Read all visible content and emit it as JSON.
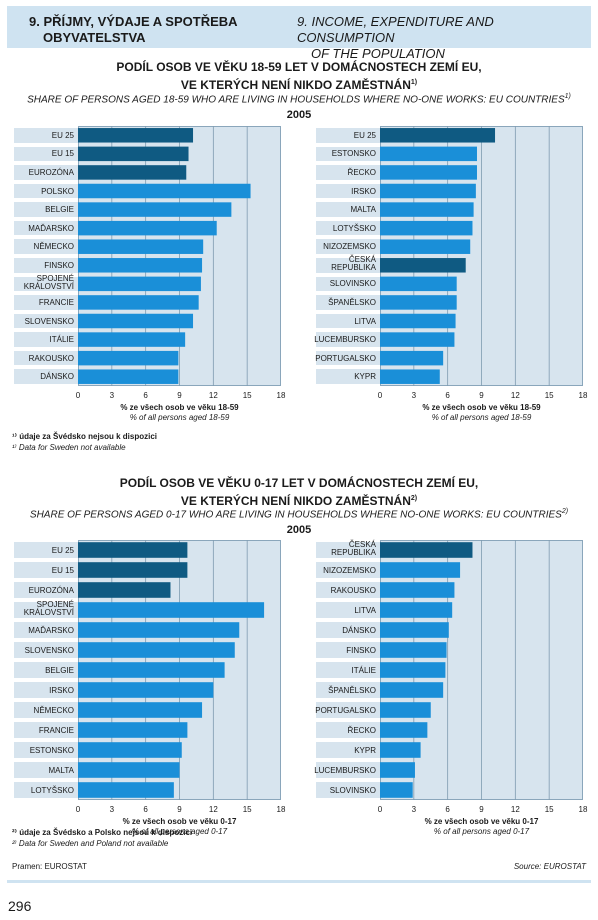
{
  "header": {
    "cz": "9. PŘÍJMY, VÝDAJE A SPOTŘEBA OBYVATELSTVA",
    "cz_line1": "9. PŘÍJMY, VÝDAJE A SPOTŘEBA",
    "cz_line2": "OBYVATELSTVA",
    "en_line1": "9. INCOME, EXPENDITURE AND CONSUMPTION",
    "en_line2": "OF THE POPULATION"
  },
  "sections": [
    {
      "title_cz_line1": "PODÍL OSOB VE VĚKU 18-59 LET V DOMÁCNOSTECH ZEMÍ EU,",
      "title_cz_line2": "VE KTERÝCH NENÍ NIKDO ZAMĚSTNÁN",
      "title_sup": "1)",
      "subtitle_en": "SHARE OF PERSONS AGED 18-59 WHO ARE LIVING IN HOUSEHOLDS WHERE NO-ONE WORKS: EU COUNTRIES",
      "subtitle_sup": "1)",
      "year": "2005",
      "xlabel_cz": "% ze všech osob ve věku 18-59",
      "xlabel_en": "% of all persons aged 18-59",
      "note_cz": "¹⁾ údaje za Švédsko nejsou k dispozici",
      "note_en": "¹⁾ Data for Sweden not available"
    },
    {
      "title_cz_line1": "PODÍL OSOB VE VĚKU 0-17 LET V DOMÁCNOSTECH ZEMÍ EU,",
      "title_cz_line2": "VE KTERÝCH NENÍ NIKDO ZAMĚSTNÁN",
      "title_sup": "2)",
      "subtitle_en": "SHARE OF PERSONS AGED 0-17 WHO ARE LIVING IN HOUSEHOLDS WHERE NO-ONE WORKS: EU COUNTRIES",
      "subtitle_sup": "2)",
      "year": "2005",
      "xlabel_cz": "% ze všech osob ve věku 0-17",
      "xlabel_en": "% of all persons aged 0-17",
      "note_cz": "²⁾ údaje za Švédsko a Polsko nejsou k dispozici",
      "note_en": "²⁾ Data for Sweden and Poland not available"
    }
  ],
  "colors": {
    "aggregate": "#0f5a82",
    "country": "#1a8fd8",
    "plot_bg": "#d7e4ee",
    "header_bg": "#cfe3f1"
  },
  "chart_data": [
    {
      "type": "bar",
      "orientation": "horizontal",
      "xlim": [
        0,
        18
      ],
      "ticks": [
        "0",
        "3",
        "6",
        "9",
        "12",
        "15",
        "18"
      ],
      "categories": [
        "EU 25",
        "EU 15",
        "EUROZÓNA",
        "POLSKO",
        "BELGIE",
        "MAĎARSKO",
        "NĚMECKO",
        "FINSKO",
        "SPOJENÉ KRÁLOVSTVÍ",
        "FRANCIE",
        "SLOVENSKO",
        "ITÁLIE",
        "RAKOUSKO",
        "DÁNSKO"
      ],
      "values": [
        10.2,
        9.8,
        9.6,
        15.3,
        13.6,
        12.3,
        11.1,
        11.0,
        10.9,
        10.7,
        10.2,
        9.5,
        8.9,
        8.9
      ],
      "aggregate": [
        true,
        true,
        true,
        false,
        false,
        false,
        false,
        false,
        false,
        false,
        false,
        false,
        false,
        false
      ]
    },
    {
      "type": "bar",
      "orientation": "horizontal",
      "xlim": [
        0,
        18
      ],
      "ticks": [
        "0",
        "3",
        "6",
        "9",
        "12",
        "15",
        "18"
      ],
      "categories": [
        "EU 25",
        "ESTONSKO",
        "ŘECKO",
        "IRSKO",
        "MALTA",
        "LOTYŠSKO",
        "NIZOZEMSKO",
        "ČESKÁ REPUBLIKA",
        "SLOVINSKO",
        "ŠPANĚLSKO",
        "LITVA",
        "LUCEMBURSKO",
        "PORTUGALSKO",
        "KYPR"
      ],
      "values": [
        10.2,
        8.6,
        8.6,
        8.5,
        8.3,
        8.2,
        8.0,
        7.6,
        6.8,
        6.8,
        6.7,
        6.6,
        5.6,
        5.3
      ],
      "aggregate": [
        true,
        false,
        false,
        false,
        false,
        false,
        false,
        true,
        false,
        false,
        false,
        false,
        false,
        false
      ]
    },
    {
      "type": "bar",
      "orientation": "horizontal",
      "xlim": [
        0,
        18
      ],
      "ticks": [
        "0",
        "3",
        "6",
        "9",
        "12",
        "15",
        "18"
      ],
      "categories": [
        "EU 25",
        "EU 15",
        "EUROZÓNA",
        "SPOJENÉ KRÁLOVSTVÍ",
        "MAĎARSKO",
        "SLOVENSKO",
        "BELGIE",
        "IRSKO",
        "NĚMECKO",
        "FRANCIE",
        "ESTONSKO",
        "MALTA",
        "LOTYŠSKO"
      ],
      "values": [
        9.7,
        9.7,
        8.2,
        16.5,
        14.3,
        13.9,
        13.0,
        12.0,
        11.0,
        9.7,
        9.2,
        9.0,
        8.5
      ],
      "aggregate": [
        true,
        true,
        true,
        false,
        false,
        false,
        false,
        false,
        false,
        false,
        false,
        false,
        false
      ]
    },
    {
      "type": "bar",
      "orientation": "horizontal",
      "xlim": [
        0,
        18
      ],
      "ticks": [
        "0",
        "3",
        "6",
        "9",
        "12",
        "15",
        "18"
      ],
      "categories": [
        "ČESKÁ REPUBLIKA",
        "NIZOZEMSKO",
        "RAKOUSKO",
        "LITVA",
        "DÁNSKO",
        "FINSKO",
        "ITÁLIE",
        "ŠPANĚLSKO",
        "PORTUGALSKO",
        "ŘECKO",
        "KYPR",
        "LUCEMBURSKO",
        "SLOVINSKO"
      ],
      "values": [
        8.2,
        7.1,
        6.6,
        6.4,
        6.1,
        5.9,
        5.8,
        5.6,
        4.5,
        4.2,
        3.6,
        3.1,
        2.9
      ],
      "aggregate": [
        true,
        false,
        false,
        false,
        false,
        false,
        false,
        false,
        false,
        false,
        false,
        false,
        false
      ]
    }
  ],
  "footer": {
    "source_cz": "Pramen: EUROSTAT",
    "source_en": "Source: EUROSTAT",
    "page": "296"
  }
}
